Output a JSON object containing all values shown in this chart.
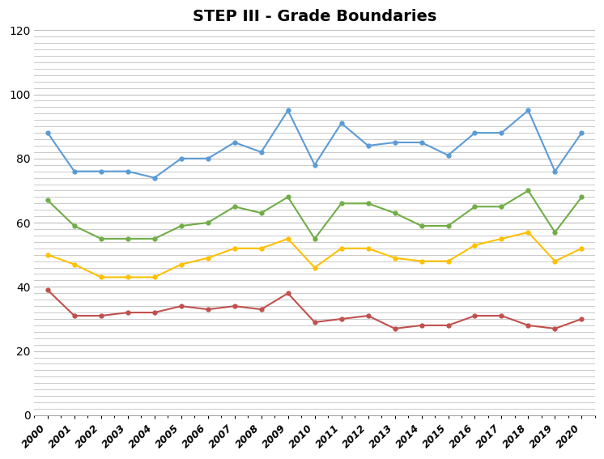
{
  "title": "STEP III - Grade Boundaries",
  "years": [
    2000,
    2001,
    2002,
    2003,
    2004,
    2005,
    2006,
    2007,
    2008,
    2009,
    2010,
    2011,
    2012,
    2013,
    2014,
    2015,
    2016,
    2017,
    2018,
    2019,
    2020
  ],
  "blue": [
    88,
    76,
    76,
    76,
    74,
    80,
    80,
    85,
    82,
    95,
    78,
    91,
    84,
    85,
    85,
    81,
    88,
    88,
    95,
    76,
    88
  ],
  "green": [
    67,
    59,
    55,
    55,
    55,
    59,
    60,
    65,
    63,
    68,
    55,
    66,
    66,
    63,
    59,
    59,
    65,
    65,
    70,
    57,
    68
  ],
  "yellow": [
    50,
    47,
    43,
    43,
    43,
    47,
    49,
    52,
    52,
    55,
    46,
    52,
    52,
    49,
    48,
    48,
    53,
    55,
    57,
    48,
    52
  ],
  "red": [
    39,
    31,
    31,
    32,
    32,
    34,
    33,
    34,
    33,
    38,
    29,
    30,
    31,
    27,
    28,
    28,
    31,
    31,
    28,
    27,
    30
  ],
  "blue_color": "#5B9BD5",
  "green_color": "#70AD47",
  "yellow_color": "#FFC000",
  "red_color": "#C0504D",
  "ylim": [
    0,
    120
  ],
  "yticks_major": [
    0,
    20,
    40,
    60,
    80,
    100,
    120
  ],
  "background_color": "#FFFFFF",
  "plot_bg_color": "#FFFFFF",
  "grid_color": "#C0C0C0",
  "marker": "o",
  "marker_size": 3.5,
  "line_width": 1.5,
  "title_fontsize": 14,
  "title_fontweight": "bold",
  "figsize": [
    7.46,
    5.67
  ],
  "dpi": 100
}
